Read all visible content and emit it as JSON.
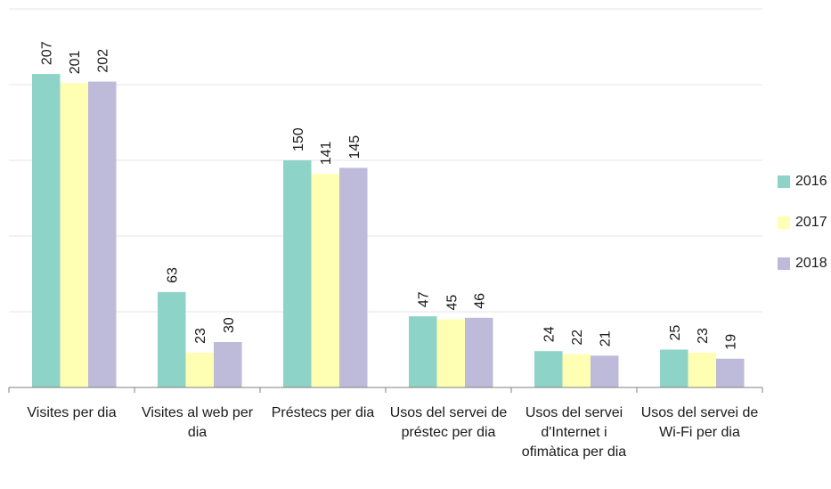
{
  "chart_data": {
    "type": "bar",
    "categories": [
      "Visites per dia",
      "Visites al web per dia",
      "Préstecs per dia",
      "Usos del servei de préstec per dia",
      "Usos del servei d'Internet i ofimàtica per dia",
      "Usos del servei de Wi-Fi per dia"
    ],
    "series": [
      {
        "name": "2016",
        "color": "#8dd3c7",
        "values": [
          207,
          63,
          150,
          47,
          24,
          25
        ]
      },
      {
        "name": "2017",
        "color": "#ffffb3",
        "values": [
          201,
          23,
          141,
          45,
          22,
          23
        ]
      },
      {
        "name": "2018",
        "color": "#bebada",
        "values": [
          202,
          30,
          145,
          46,
          21,
          19
        ]
      }
    ],
    "ylim": [
      0,
      250
    ],
    "grid": true,
    "legend_position": "right",
    "data_labels": true
  }
}
